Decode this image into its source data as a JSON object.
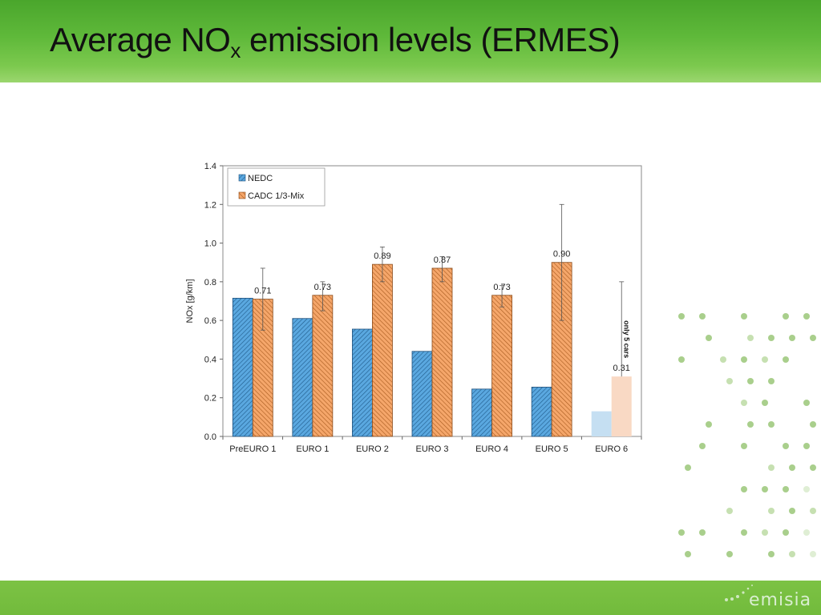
{
  "slide": {
    "title_main": "Average NO",
    "title_sub": "x",
    "title_rest": " emission levels (ERMES)",
    "logo_text": "emisia"
  },
  "colors": {
    "header_green": "#5fb93a",
    "footer_green": "#7cc244",
    "nedc_blue": "#5aa8e0",
    "cadc_orange": "#f5a66a",
    "euro6_nedc": "#c5dff2",
    "euro6_cadc": "#f9d9c4"
  },
  "chart_data": {
    "type": "bar",
    "title": "",
    "xlabel": "",
    "ylabel": "NOx [g/km]",
    "ylim": [
      0,
      1.4
    ],
    "yticks": [
      "0.0",
      "0.2",
      "0.4",
      "0.6",
      "0.8",
      "1.0",
      "1.2",
      "1.4"
    ],
    "categories": [
      "PreEURO 1",
      "EURO 1",
      "EURO 2",
      "EURO 3",
      "EURO 4",
      "EURO 5",
      "EURO 6"
    ],
    "series": [
      {
        "name": "NEDC",
        "values": [
          0.715,
          0.61,
          0.555,
          0.44,
          0.245,
          0.255,
          0.13
        ],
        "color": "#5aa8e0"
      },
      {
        "name": "CADC 1/3-Mix",
        "values": [
          0.71,
          0.73,
          0.89,
          0.87,
          0.73,
          0.9,
          0.31
        ],
        "color": "#f5a66a",
        "error_low": [
          0.55,
          0.65,
          0.8,
          0.8,
          0.67,
          0.6,
          0.31
        ],
        "error_high": [
          0.87,
          0.8,
          0.98,
          0.93,
          0.78,
          1.2,
          0.8
        ],
        "data_labels": [
          "0.71",
          "0.73",
          "0.89",
          "0.87",
          "0.73",
          "0.90",
          "0.31"
        ]
      }
    ],
    "annotation": "only 5 cars",
    "legend_position": "top-left",
    "grid": false
  }
}
